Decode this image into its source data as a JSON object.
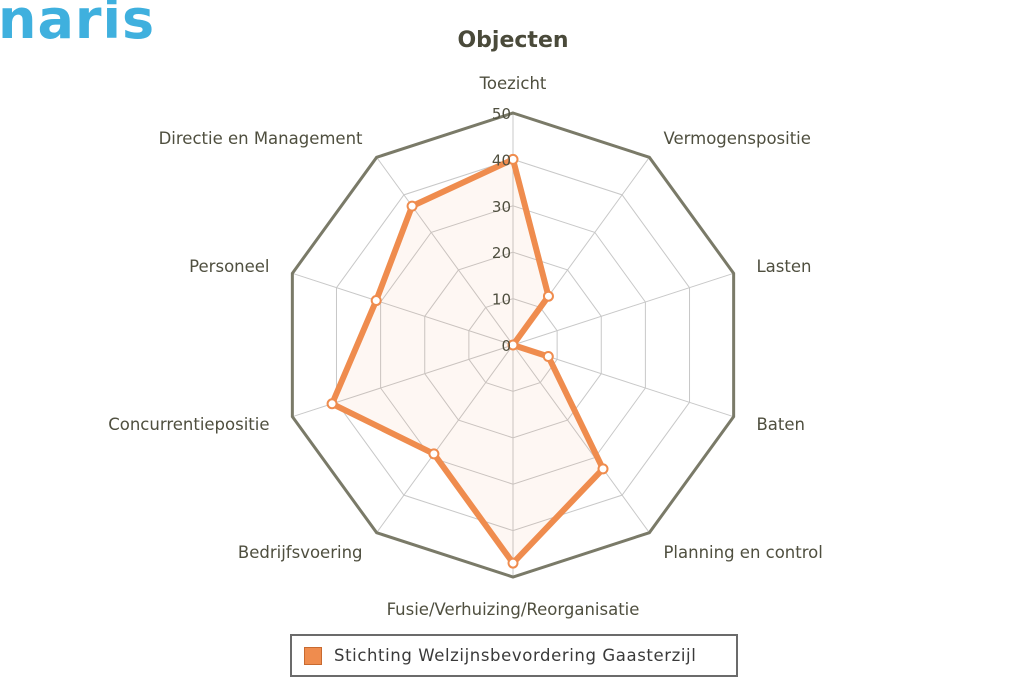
{
  "logo": {
    "text": "naris",
    "color": "#3fb0de"
  },
  "chart_data": {
    "type": "radar",
    "title": "Objecten",
    "categories": [
      "Toezicht",
      "Vermogenspositie",
      "Lasten",
      "Baten",
      "Planning en control",
      "Fusie/Verhuizing/Reorganisatie",
      "Bedrijfsvoering",
      "Concurrentiepositie",
      "Personeel",
      "Directie en Management"
    ],
    "ticks": [
      0,
      10,
      20,
      30,
      40,
      50
    ],
    "tick_labels": [
      "0",
      "10",
      "20",
      "30",
      "40",
      "50"
    ],
    "range": [
      0,
      50
    ],
    "grid": true,
    "legend_position": "bottom",
    "series": [
      {
        "name": "Stichting Welzijnsbevordering Gaasterzijl",
        "values": [
          40,
          13,
          0,
          8,
          33,
          47,
          29,
          41,
          31,
          37
        ],
        "color": "#ef8c4e"
      }
    ]
  }
}
